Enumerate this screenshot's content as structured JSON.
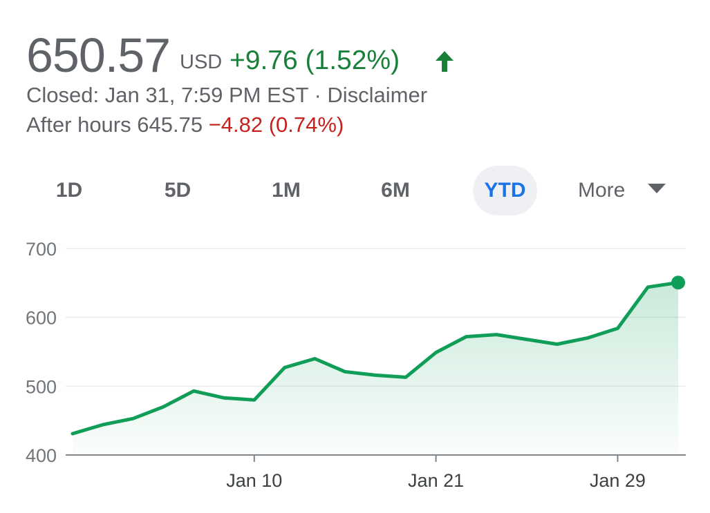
{
  "quote": {
    "price": "650.57",
    "currency": "USD",
    "change": "+9.76 (1.52%)",
    "closed_label": "Closed: Jan 31, 7:59 PM EST",
    "separator": " · ",
    "disclaimer": "Disclaimer",
    "after_hours_label": "After hours 645.75",
    "after_hours_change": "−4.82 (0.74%)"
  },
  "ranges": {
    "r1d": "1D",
    "r5d": "5D",
    "r1m": "1M",
    "r6m": "6M",
    "ytd": "YTD",
    "more": "More"
  },
  "colors": {
    "positive": "#188038",
    "negative": "#c5221f",
    "line": "#0f9d58",
    "selected": "#1a73e8"
  },
  "chart_data": {
    "type": "area",
    "title": "",
    "xlabel": "",
    "ylabel": "",
    "ylim": [
      400,
      700
    ],
    "yticks": [
      400,
      500,
      600,
      700
    ],
    "xticks": [
      {
        "label": "Jan 10",
        "x": 6
      },
      {
        "label": "Jan 21",
        "x": 12
      },
      {
        "label": "Jan 29",
        "x": 18
      }
    ],
    "grid": true,
    "series": [
      {
        "x": [
          0,
          1,
          2,
          3,
          4,
          5,
          6,
          7,
          8,
          9,
          10,
          11,
          12,
          13,
          14,
          15,
          16,
          17,
          18,
          19,
          20
        ],
        "values": [
          431,
          444,
          453,
          470,
          493,
          483,
          480,
          527,
          540,
          521,
          516,
          513,
          549,
          572,
          575,
          568,
          561,
          570,
          584,
          644,
          650.57
        ]
      }
    ]
  }
}
